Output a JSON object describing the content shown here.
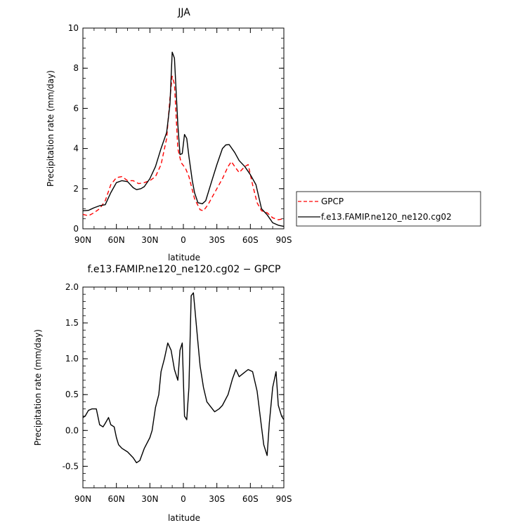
{
  "chart_data": [
    {
      "type": "line",
      "title": "JJA",
      "xlabel": "latitude",
      "ylabel": "Precipitation rate (mm/day)",
      "ylim": [
        0,
        10
      ],
      "xlim": [
        90,
        -90
      ],
      "x_tick_labels": [
        "90N",
        "60N",
        "30N",
        "0",
        "30S",
        "60S",
        "90S"
      ],
      "y_tick_labels": [
        "0",
        "2",
        "4",
        "6",
        "8",
        "10"
      ],
      "legend_position": "outside-right",
      "series": [
        {
          "name": "GPCP",
          "color": "#ff0000",
          "dash": "dashed",
          "points": [
            [
              90,
              0.72
            ],
            [
              85,
              0.65
            ],
            [
              80,
              0.8
            ],
            [
              75,
              1.0
            ],
            [
              70,
              1.4
            ],
            [
              65,
              2.2
            ],
            [
              60,
              2.55
            ],
            [
              55,
              2.6
            ],
            [
              50,
              2.4
            ],
            [
              45,
              2.4
            ],
            [
              40,
              2.25
            ],
            [
              35,
              2.3
            ],
            [
              30,
              2.4
            ],
            [
              25,
              2.6
            ],
            [
              20,
              3.2
            ],
            [
              15,
              4.5
            ],
            [
              12,
              6.5
            ],
            [
              10,
              7.6
            ],
            [
              8,
              7.2
            ],
            [
              5,
              4.0
            ],
            [
              2,
              3.3
            ],
            [
              -2,
              3.0
            ],
            [
              -5,
              2.6
            ],
            [
              -10,
              1.5
            ],
            [
              -15,
              0.95
            ],
            [
              -18,
              0.9
            ],
            [
              -22,
              1.2
            ],
            [
              -28,
              1.8
            ],
            [
              -35,
              2.5
            ],
            [
              -40,
              3.1
            ],
            [
              -43,
              3.35
            ],
            [
              -46,
              3.1
            ],
            [
              -50,
              2.8
            ],
            [
              -55,
              3.1
            ],
            [
              -58,
              3.2
            ],
            [
              -62,
              2.2
            ],
            [
              -66,
              1.3
            ],
            [
              -70,
              0.9
            ],
            [
              -75,
              0.8
            ],
            [
              -80,
              0.55
            ],
            [
              -85,
              0.45
            ],
            [
              -90,
              0.5
            ]
          ]
        },
        {
          "name": "f.e13.FAMIP.ne120_ne120.cg02",
          "color": "#000000",
          "dash": "solid",
          "points": [
            [
              90,
              0.9
            ],
            [
              85,
              0.92
            ],
            [
              80,
              1.05
            ],
            [
              75,
              1.15
            ],
            [
              70,
              1.2
            ],
            [
              65,
              1.8
            ],
            [
              60,
              2.3
            ],
            [
              55,
              2.4
            ],
            [
              50,
              2.35
            ],
            [
              45,
              2.05
            ],
            [
              42,
              1.95
            ],
            [
              38,
              2.0
            ],
            [
              35,
              2.1
            ],
            [
              30,
              2.5
            ],
            [
              25,
              3.1
            ],
            [
              20,
              4.0
            ],
            [
              15,
              4.8
            ],
            [
              12,
              6.2
            ],
            [
              10,
              8.8
            ],
            [
              8,
              8.5
            ],
            [
              5,
              5.2
            ],
            [
              3,
              3.7
            ],
            [
              1,
              3.75
            ],
            [
              -1,
              4.7
            ],
            [
              -3,
              4.5
            ],
            [
              -5,
              3.6
            ],
            [
              -8,
              2.4
            ],
            [
              -10,
              1.8
            ],
            [
              -13,
              1.3
            ],
            [
              -17,
              1.25
            ],
            [
              -20,
              1.4
            ],
            [
              -25,
              2.3
            ],
            [
              -30,
              3.2
            ],
            [
              -35,
              4.0
            ],
            [
              -38,
              4.18
            ],
            [
              -41,
              4.2
            ],
            [
              -46,
              3.8
            ],
            [
              -50,
              3.4
            ],
            [
              -55,
              3.1
            ],
            [
              -60,
              2.7
            ],
            [
              -65,
              2.2
            ],
            [
              -70,
              1.0
            ],
            [
              -75,
              0.7
            ],
            [
              -80,
              0.3
            ],
            [
              -85,
              0.18
            ],
            [
              -90,
              0.12
            ]
          ]
        }
      ]
    },
    {
      "type": "line",
      "title": "f.e13.FAMIP.ne120_ne120.cg02 − GPCP",
      "xlabel": "latitude",
      "ylabel": "Precipitation rate (mm/day)",
      "ylim": [
        -0.8,
        2.0
      ],
      "xlim": [
        90,
        -90
      ],
      "x_tick_labels": [
        "90N",
        "60N",
        "30N",
        "0",
        "30S",
        "60S",
        "90S"
      ],
      "y_tick_labels": [
        "2.0",
        "1.5",
        "1.0",
        "0.5",
        "0.0",
        "-0.5"
      ],
      "y_ticks": [
        2.0,
        1.5,
        1.0,
        0.5,
        0.0,
        -0.5
      ],
      "series": [
        {
          "color": "#000000",
          "dash": "solid",
          "points": [
            [
              90,
              0.18
            ],
            [
              88,
              0.2
            ],
            [
              85,
              0.28
            ],
            [
              82,
              0.3
            ],
            [
              78,
              0.3
            ],
            [
              75,
              0.08
            ],
            [
              72,
              0.05
            ],
            [
              70,
              0.1
            ],
            [
              67,
              0.18
            ],
            [
              65,
              0.08
            ],
            [
              62,
              0.05
            ],
            [
              60,
              -0.1
            ],
            [
              58,
              -0.2
            ],
            [
              55,
              -0.25
            ],
            [
              50,
              -0.3
            ],
            [
              45,
              -0.38
            ],
            [
              42,
              -0.45
            ],
            [
              39,
              -0.42
            ],
            [
              35,
              -0.25
            ],
            [
              30,
              -0.1
            ],
            [
              28,
              0.0
            ],
            [
              25,
              0.32
            ],
            [
              22,
              0.5
            ],
            [
              20,
              0.82
            ],
            [
              17,
              1.0
            ],
            [
              14,
              1.22
            ],
            [
              11,
              1.12
            ],
            [
              8,
              0.85
            ],
            [
              5,
              0.7
            ],
            [
              3,
              1.12
            ],
            [
              1,
              1.22
            ],
            [
              -1,
              0.2
            ],
            [
              -3,
              0.15
            ],
            [
              -5,
              0.6
            ],
            [
              -7,
              1.88
            ],
            [
              -9,
              1.92
            ],
            [
              -12,
              1.4
            ],
            [
              -15,
              0.9
            ],
            [
              -18,
              0.6
            ],
            [
              -21,
              0.4
            ],
            [
              -25,
              0.32
            ],
            [
              -28,
              0.26
            ],
            [
              -32,
              0.3
            ],
            [
              -35,
              0.35
            ],
            [
              -40,
              0.5
            ],
            [
              -44,
              0.72
            ],
            [
              -47,
              0.85
            ],
            [
              -50,
              0.75
            ],
            [
              -54,
              0.8
            ],
            [
              -58,
              0.85
            ],
            [
              -62,
              0.82
            ],
            [
              -66,
              0.55
            ],
            [
              -70,
              0.05
            ],
            [
              -72,
              -0.2
            ],
            [
              -75,
              -0.35
            ],
            [
              -77,
              0.1
            ],
            [
              -80,
              0.6
            ],
            [
              -83,
              0.82
            ],
            [
              -85,
              0.35
            ],
            [
              -88,
              0.2
            ],
            [
              -90,
              0.15
            ]
          ]
        }
      ]
    }
  ]
}
